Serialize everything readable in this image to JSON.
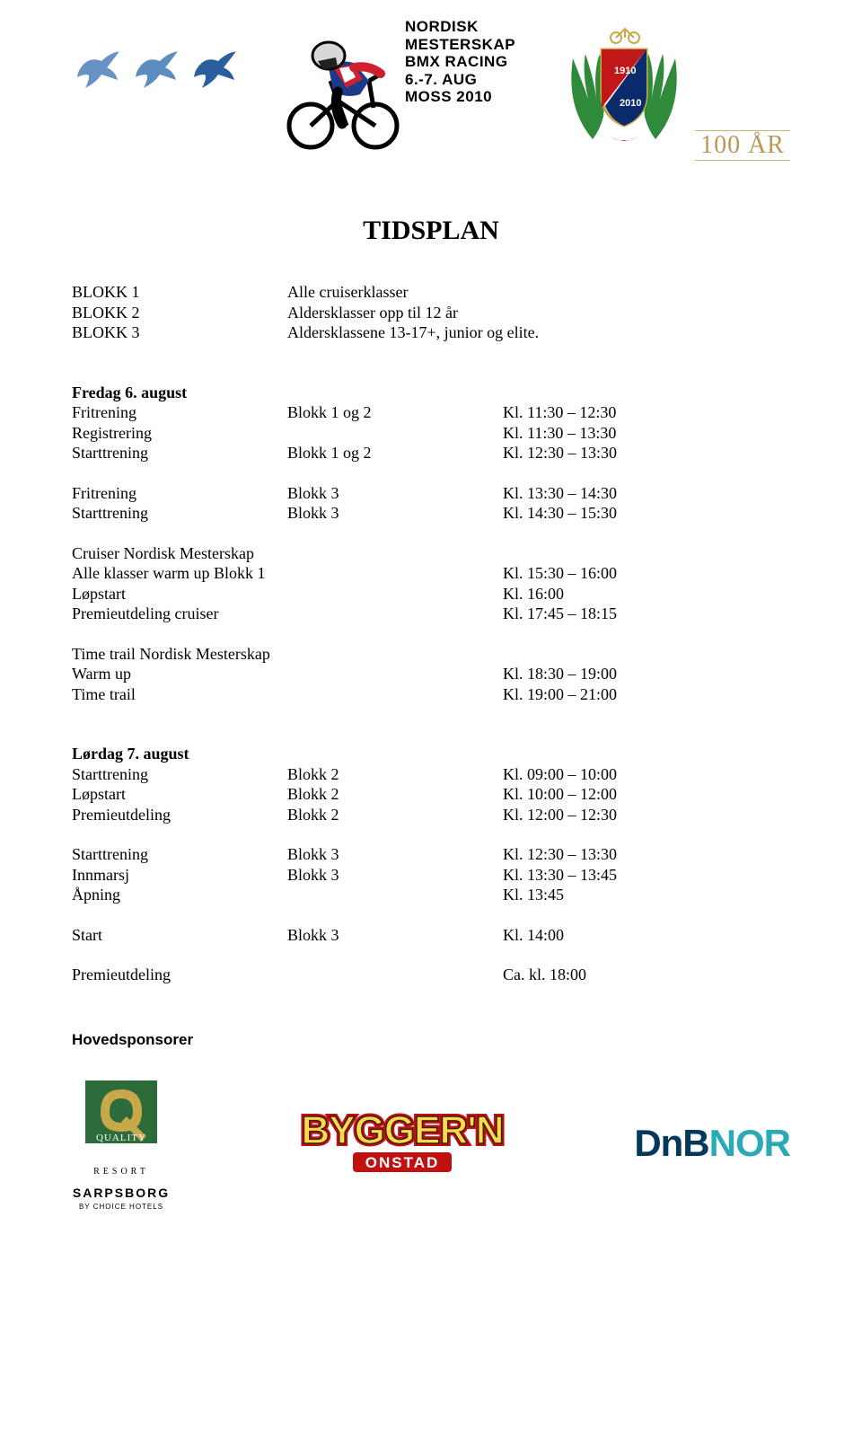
{
  "header": {
    "event_lines": [
      "NORDISK",
      "MESTERSKAP",
      "BMX RACING",
      "6.-7. AUG",
      "MOSS 2010"
    ],
    "year_badge": "100 ÅR",
    "bird_color": "#4b80b8",
    "ncf_red": "#c01818",
    "ncf_blue": "#0b2a6b",
    "ncf_year1": "1910",
    "ncf_year2": "2010",
    "laurel_color": "#2f8a3a"
  },
  "title": "TIDSPLAN",
  "intro": {
    "rows": [
      {
        "c1": "BLOKK 1",
        "c2": "",
        "c3": "Alle cruiserklasser"
      },
      {
        "c1": "BLOKK 2",
        "c2": "",
        "c3": "Aldersklasser opp til 12 år"
      },
      {
        "c1": "BLOKK 3",
        "c2": "",
        "c3": "Aldersklassene 13-17+, junior og elite."
      }
    ]
  },
  "friday": {
    "heading": "Fredag 6. august",
    "rows1": [
      {
        "c1": "Fritrening",
        "c2": "Blokk 1 og 2",
        "c3": "Kl. 11:30 – 12:30"
      },
      {
        "c1": "Registrering",
        "c2": "",
        "c3": "Kl. 11:30 – 13:30"
      },
      {
        "c1": "Starttrening",
        "c2": "Blokk 1 og 2",
        "c3": "Kl. 12:30 – 13:30"
      }
    ],
    "rows2": [
      {
        "c1": "Fritrening",
        "c2": "Blokk 3",
        "c3": "Kl. 13:30 – 14:30"
      },
      {
        "c1": "Starttrening",
        "c2": "Blokk 3",
        "c3": "Kl. 14:30 – 15:30"
      }
    ],
    "cruiser_heading": "Cruiser Nordisk Mesterskap",
    "rows3": [
      {
        "c1": "Alle klasser warm up Blokk 1",
        "c3": "Kl. 15:30 – 16:00"
      },
      {
        "c1": "Løpstart",
        "c3": "Kl. 16:00"
      },
      {
        "c1": "Premieutdeling cruiser",
        "c3": "Kl. 17:45 – 18:15"
      }
    ],
    "tt_heading": "Time trail Nordisk Mesterskap",
    "rows4": [
      {
        "c1": "Warm up",
        "c3": "Kl. 18:30 – 19:00"
      },
      {
        "c1": "Time trail",
        "c3": "Kl. 19:00 – 21:00"
      }
    ]
  },
  "saturday": {
    "heading": "Lørdag 7. august",
    "rows1": [
      {
        "c1": "Starttrening",
        "c2": "Blokk 2",
        "c3": "Kl. 09:00 – 10:00"
      },
      {
        "c1": "Løpstart",
        "c2": "Blokk 2",
        "c3": "Kl. 10:00 – 12:00"
      },
      {
        "c1": "Premieutdeling",
        "c2": "Blokk 2",
        "c3": "Kl. 12:00 – 12:30"
      }
    ],
    "rows2": [
      {
        "c1": "Starttrening",
        "c2": "Blokk 3",
        "c3": "Kl. 12:30 – 13:30"
      },
      {
        "c1": "Innmarsj",
        "c2": "Blokk 3",
        "c3": "Kl. 13:30 – 13:45"
      },
      {
        "c1": "Åpning",
        "c2": "",
        "c3": "Kl. 13:45"
      }
    ],
    "rows3": [
      {
        "c1": "Start",
        "c2": "Blokk 3",
        "c3": "Kl. 14:00"
      }
    ],
    "rows4": [
      {
        "c1": "Premieutdeling",
        "c2": "",
        "c3": "Ca. kl. 18:00"
      }
    ]
  },
  "sponsors": {
    "heading": "Hovedsponsorer",
    "quality": {
      "line1": "QUALITY",
      "line2": "RESORT",
      "line3": "SARPSBORG",
      "line4": "BY CHOICE HOTELS",
      "green": "#2e6b3a",
      "gold": "#c9a84a"
    },
    "byggern": {
      "main": "BYGGER'N",
      "sub": "ONSTAD",
      "red": "#c01010",
      "yellow": "#ffd94a",
      "stroke": "#3b1d0c"
    },
    "dnb": {
      "text1": "DnB",
      "text2": "NOR",
      "color1": "#00395d",
      "color2": "#2aa9b7"
    }
  }
}
